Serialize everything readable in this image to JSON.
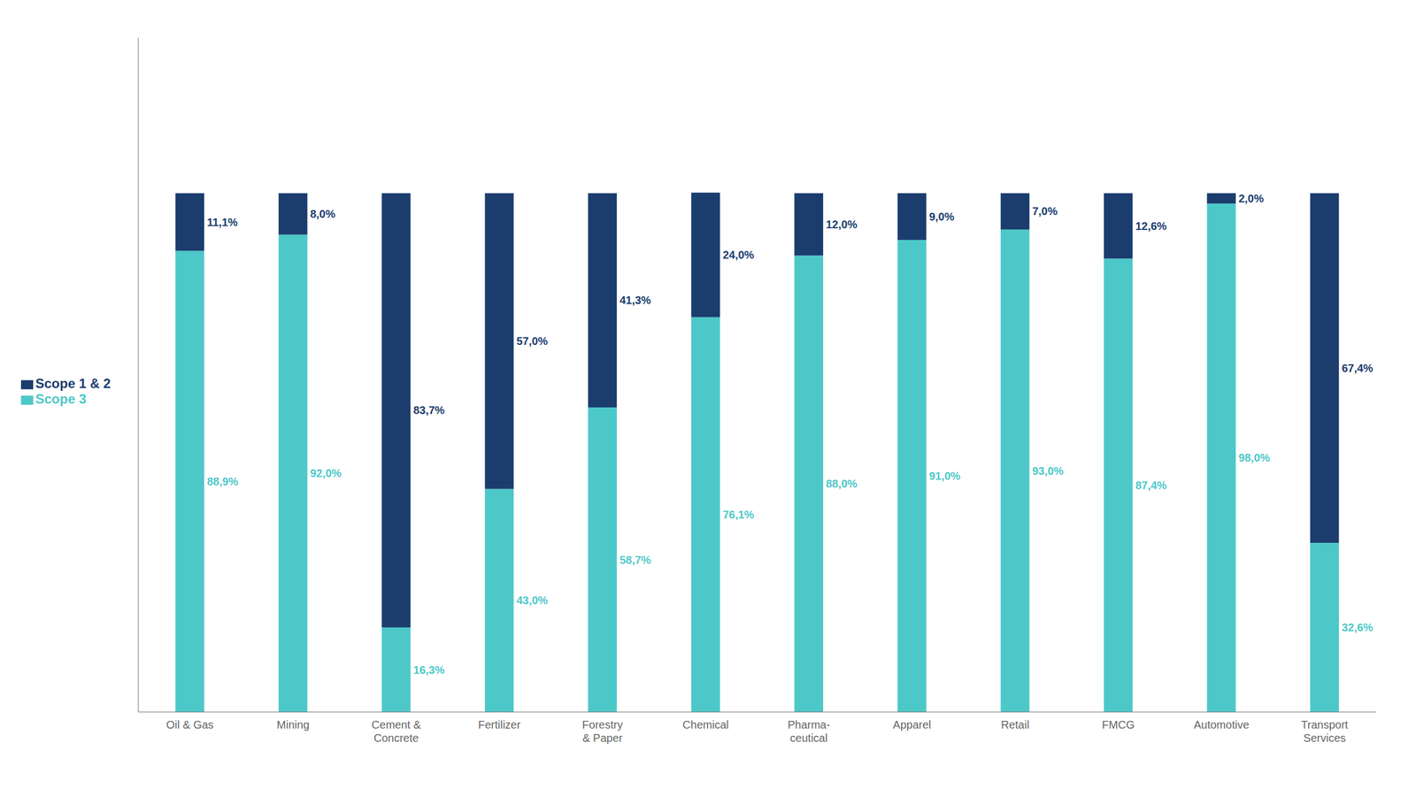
{
  "chart_data": {
    "type": "bar",
    "stacked": true,
    "categories": [
      "Oil & Gas",
      "Mining",
      "Cement &\nConcrete",
      "Fertilizer",
      "Forestry\n& Paper",
      "Chemical",
      "Pharma-\nceutical",
      "Apparel",
      "Retail",
      "FMCG",
      "Automotive",
      "Transport\nServices"
    ],
    "series": [
      {
        "name": "Scope 3",
        "color": "#4dc8c8",
        "values": [
          88.9,
          92.0,
          16.3,
          43.0,
          58.7,
          76.1,
          88.0,
          91.0,
          93.0,
          87.4,
          98.0,
          32.6
        ],
        "value_labels": [
          "88,9%",
          "92,0%",
          "16,3%",
          "43,0%",
          "58,7%",
          "76,1%",
          "88,0%",
          "91,0%",
          "93,0%",
          "87,4%",
          "98,0%",
          "32,6%"
        ]
      },
      {
        "name": "Scope 1 & 2",
        "color": "#1b3d6e",
        "values": [
          11.1,
          8.0,
          83.7,
          57.0,
          41.3,
          24.0,
          12.0,
          9.0,
          7.0,
          12.6,
          2.0,
          67.4
        ],
        "value_labels": [
          "11,1%",
          "8,0%",
          "83,7%",
          "57,0%",
          "41,3%",
          "24,0%",
          "12,0%",
          "9,0%",
          "7,0%",
          "12,6%",
          "2,0%",
          "67,4%"
        ]
      }
    ],
    "ylim": [
      0,
      130
    ],
    "grid": false,
    "legend": "left",
    "data_labels": true,
    "tick_labels": "x"
  }
}
